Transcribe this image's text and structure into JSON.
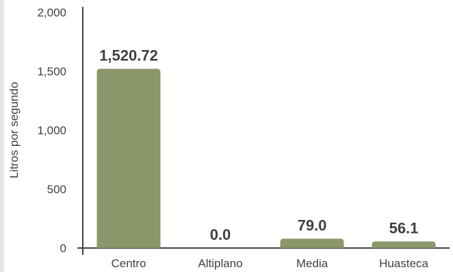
{
  "chart_data": {
    "type": "bar",
    "categories": [
      "Centro",
      "Altiplano",
      "Media",
      "Huasteca"
    ],
    "values": [
      1520.72,
      0.0,
      79.0,
      56.1
    ],
    "data_labels": [
      "1,520.72",
      "0.0",
      "79.0",
      "56.1"
    ],
    "title": "",
    "xlabel": "",
    "ylabel": "Litros por segundo",
    "ylim": [
      0,
      2000
    ],
    "yticks": [
      0,
      500,
      1000,
      1500,
      2000
    ],
    "ytick_labels": [
      "0",
      "500",
      "1,000",
      "1,500",
      "2,000"
    ],
    "grid": false,
    "legend": "none",
    "bar_color": "#8a976a",
    "text_color": "#404040",
    "axis_color": "#404040"
  }
}
